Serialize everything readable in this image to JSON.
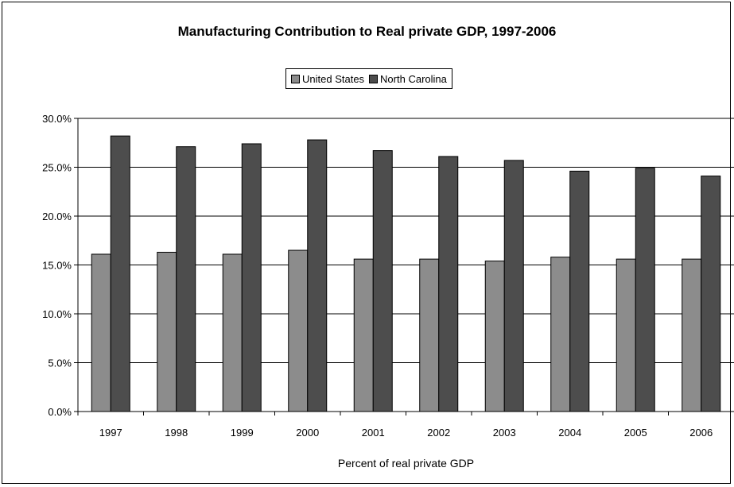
{
  "chart_data": {
    "type": "bar",
    "title": "Manufacturing Contribution to Real private GDP, 1997-2006",
    "xlabel": "Percent of real private GDP",
    "ylabel": "",
    "categories": [
      "1997",
      "1998",
      "1999",
      "2000",
      "2001",
      "2002",
      "2003",
      "2004",
      "2005",
      "2006"
    ],
    "series": [
      {
        "name": "United States",
        "color": "#8c8c8c",
        "values": [
          16.1,
          16.3,
          16.1,
          16.5,
          15.6,
          15.6,
          15.4,
          15.8,
          15.6,
          15.6
        ]
      },
      {
        "name": "North Carolina",
        "color": "#4d4d4d",
        "values": [
          28.2,
          27.1,
          27.4,
          27.8,
          26.7,
          26.1,
          25.7,
          24.6,
          24.9,
          24.1
        ]
      }
    ],
    "ylim": [
      0,
      30
    ],
    "yticks": [
      "0.0%",
      "5.0%",
      "10.0%",
      "15.0%",
      "20.0%",
      "25.0%",
      "30.0%"
    ],
    "grid": true,
    "legend": "top"
  }
}
